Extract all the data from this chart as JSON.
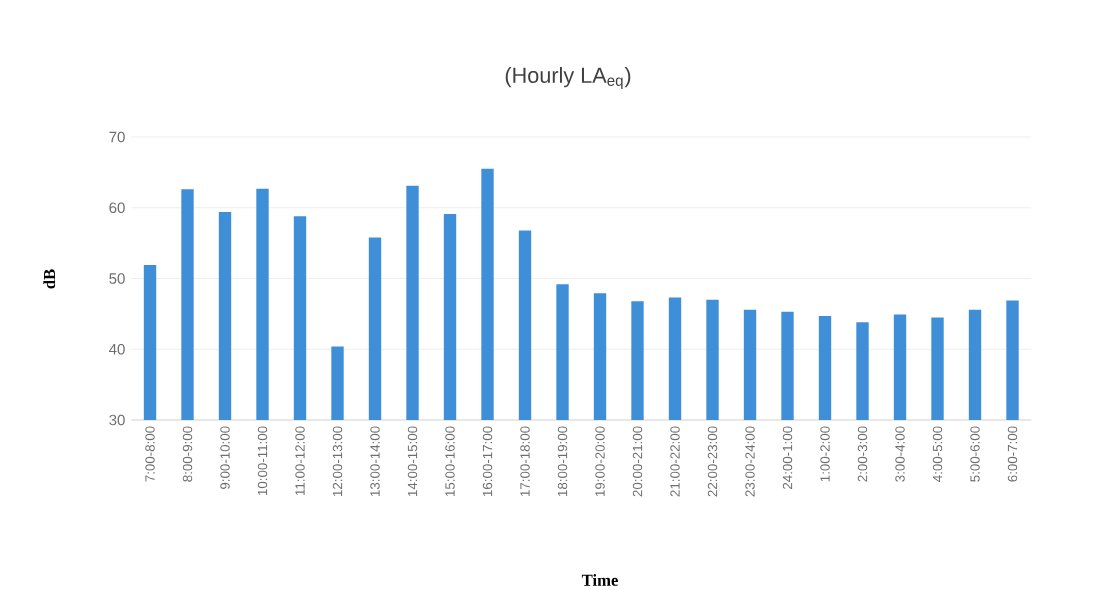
{
  "chart_data": {
    "type": "bar",
    "title": "(Hourly LA$_{eq}$)",
    "xlabel": "Time",
    "ylabel": "dB",
    "categories": [
      "7:00-8:00",
      "8:00-9:00",
      "9:00-10:00",
      "10:00-11:00",
      "11:00-12:00",
      "12:00-13:00",
      "13:00-14:00",
      "14:00-15:00",
      "15:00-16:00",
      "16:00-17:00",
      "17:00-18:00",
      "18:00-19:00",
      "19:00-20:00",
      "20:00-21:00",
      "21:00-22:00",
      "22:00-23:00",
      "23:00-24:00",
      "24:00-1:00",
      "1:00-2:00",
      "2:00-3:00",
      "3:00-4:00",
      "4:00-5:00",
      "5:00-6:00",
      "6:00-7:00"
    ],
    "values": [
      51.9,
      62.6,
      59.4,
      62.7,
      58.8,
      40.4,
      55.8,
      63.1,
      59.1,
      65.5,
      56.8,
      49.2,
      47.9,
      46.8,
      47.3,
      47.0,
      45.6,
      45.3,
      44.7,
      43.8,
      44.9,
      44.5,
      45.6,
      46.9
    ],
    "color": "#3f8fd8",
    "ylim": [
      30,
      70
    ],
    "yticks": [
      30,
      40,
      50,
      60,
      70
    ],
    "grid": "y"
  }
}
